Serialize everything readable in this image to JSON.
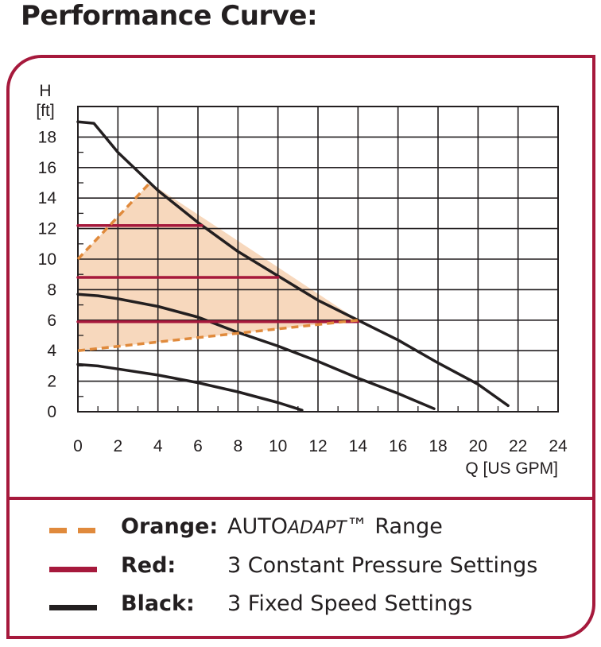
{
  "page_title": "Performance Curve:",
  "colors": {
    "frame": "#a6193c",
    "orange": "#e08a3c",
    "orange_fill": "#f7d8bd",
    "red": "#a6193c",
    "black": "#231f20"
  },
  "legend": [
    {
      "color_name": "Orange:",
      "desc_main": "AUTO",
      "desc_italic": "ADAPT",
      "desc_tail": "™ Range",
      "line_style": "dashed",
      "color_key": "orange"
    },
    {
      "color_name": "Red:",
      "desc_main": "3 Constant Pressure Settings",
      "desc_italic": "",
      "desc_tail": "",
      "line_style": "solid",
      "color_key": "red"
    },
    {
      "color_name": "Black:",
      "desc_main": "3 Fixed Speed Settings",
      "desc_italic": "",
      "desc_tail": "",
      "line_style": "solid",
      "color_key": "black"
    }
  ],
  "chart_data": {
    "type": "line",
    "title": "",
    "ylabel": "H",
    "ylabel_unit": "[ft]",
    "xlabel": "Q [US GPM]",
    "xlim": [
      0,
      24
    ],
    "ylim": [
      0,
      20
    ],
    "xticks": [
      0,
      2,
      4,
      6,
      8,
      10,
      12,
      14,
      16,
      18,
      20,
      22,
      24
    ],
    "yticks": [
      0,
      2,
      4,
      6,
      8,
      10,
      12,
      14,
      16,
      18
    ],
    "grid": true,
    "auto_adapt_region": [
      [
        0,
        10
      ],
      [
        3.6,
        15
      ],
      [
        14,
        6
      ],
      [
        0,
        4
      ]
    ],
    "series": [
      {
        "color_key": "black",
        "style": "solid",
        "points": [
          [
            0,
            19
          ],
          [
            0.8,
            18.9
          ],
          [
            2,
            17
          ],
          [
            4,
            14.5
          ],
          [
            6,
            12.4
          ],
          [
            8,
            10.5
          ],
          [
            10,
            8.9
          ],
          [
            12,
            7.3
          ],
          [
            14,
            6
          ],
          [
            16,
            4.7
          ],
          [
            18,
            3.2
          ],
          [
            20,
            1.8
          ],
          [
            21.5,
            0.4
          ]
        ]
      },
      {
        "color_key": "black",
        "style": "solid",
        "points": [
          [
            0,
            7.7
          ],
          [
            1,
            7.6
          ],
          [
            2,
            7.4
          ],
          [
            4,
            6.9
          ],
          [
            6,
            6.2
          ],
          [
            8,
            5.2
          ],
          [
            10,
            4.3
          ],
          [
            12,
            3.3
          ],
          [
            14,
            2.2
          ],
          [
            16,
            1.2
          ],
          [
            17.8,
            0.2
          ]
        ]
      },
      {
        "color_key": "black",
        "style": "solid",
        "points": [
          [
            0,
            3.1
          ],
          [
            1,
            3.0
          ],
          [
            2,
            2.8
          ],
          [
            4,
            2.4
          ],
          [
            6,
            1.9
          ],
          [
            8,
            1.3
          ],
          [
            10,
            0.6
          ],
          [
            11.2,
            0.1
          ]
        ]
      },
      {
        "color_key": "red",
        "style": "solid",
        "points": [
          [
            0,
            12.2
          ],
          [
            6.2,
            12.2
          ]
        ]
      },
      {
        "color_key": "red",
        "style": "solid",
        "points": [
          [
            0,
            8.8
          ],
          [
            10,
            8.8
          ]
        ]
      },
      {
        "color_key": "red",
        "style": "solid",
        "points": [
          [
            0,
            5.9
          ],
          [
            14,
            5.9
          ]
        ]
      },
      {
        "color_key": "orange",
        "style": "dashed",
        "points": [
          [
            0,
            10
          ],
          [
            3.6,
            15
          ]
        ]
      },
      {
        "color_key": "orange",
        "style": "dashed",
        "points": [
          [
            0,
            4
          ],
          [
            14,
            6
          ]
        ]
      }
    ]
  }
}
